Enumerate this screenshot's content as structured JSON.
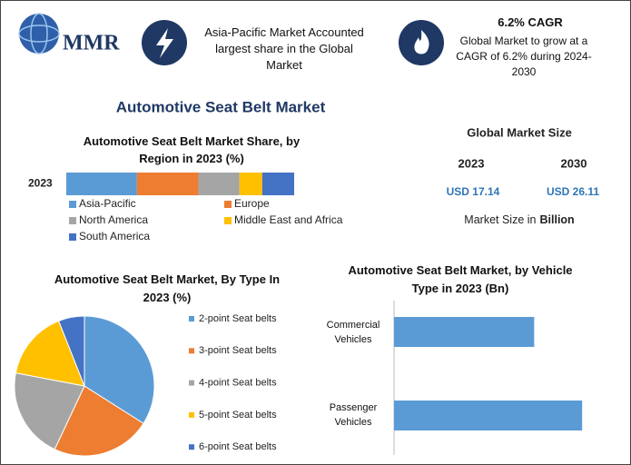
{
  "logo": {
    "text": "MMR"
  },
  "highlights": [
    {
      "text": "Asia-Pacific Market Accounted largest share in the Global Market"
    },
    {
      "title": "6.2% CAGR",
      "text": "Global Market to grow at a CAGR of 6.2% during 2024-2030"
    }
  ],
  "title": "Automotive Seat Belt Market",
  "market_size": {
    "title": "Global Market Size",
    "years": [
      "2023",
      "2030"
    ],
    "values": [
      "USD 17.14",
      "USD 26.11"
    ],
    "note": "Market Size in",
    "note_unit": "Billion"
  },
  "chart_data": [
    {
      "type": "stacked-bar",
      "orientation": "horizontal",
      "title": "Automotive Seat Belt Market Share, by Region  in 2023 (%)",
      "categories": [
        "2023"
      ],
      "xlim": [
        0,
        100
      ],
      "legend": "bottom",
      "series": [
        {
          "name": "Asia-Pacific",
          "color": "#5b9bd5",
          "values": [
            31
          ]
        },
        {
          "name": "Europe",
          "color": "#ed7d31",
          "values": [
            27
          ]
        },
        {
          "name": "North America",
          "color": "#a5a5a5",
          "values": [
            18
          ]
        },
        {
          "name": "Middle East and Africa",
          "color": "#ffc000",
          "values": [
            10
          ]
        },
        {
          "name": "South America",
          "color": "#4472c4",
          "values": [
            14
          ]
        }
      ]
    },
    {
      "type": "pie",
      "title": "Automotive Seat Belt Market, By Type In 2023 (%)",
      "categories": [
        "2-point Seat belts",
        "3-point Seat belts",
        "4-point Seat belts",
        "5-point Seat belts",
        "6-point Seat belts"
      ],
      "values": [
        34,
        23,
        21,
        16,
        6
      ],
      "colors": [
        "#5b9bd5",
        "#ed7d31",
        "#a5a5a5",
        "#ffc000",
        "#4472c4"
      ],
      "legend": "right"
    },
    {
      "type": "bar",
      "orientation": "horizontal",
      "title": "Automotive Seat Belt Market, by Vehicle Type in 2023 (Bn)",
      "categories": [
        "Commercial Vehicles",
        "Passenger Vehicles"
      ],
      "values": [
        7.3,
        9.8
      ],
      "xlim": [
        0,
        10.5
      ],
      "color": "#5b9bd5"
    }
  ]
}
